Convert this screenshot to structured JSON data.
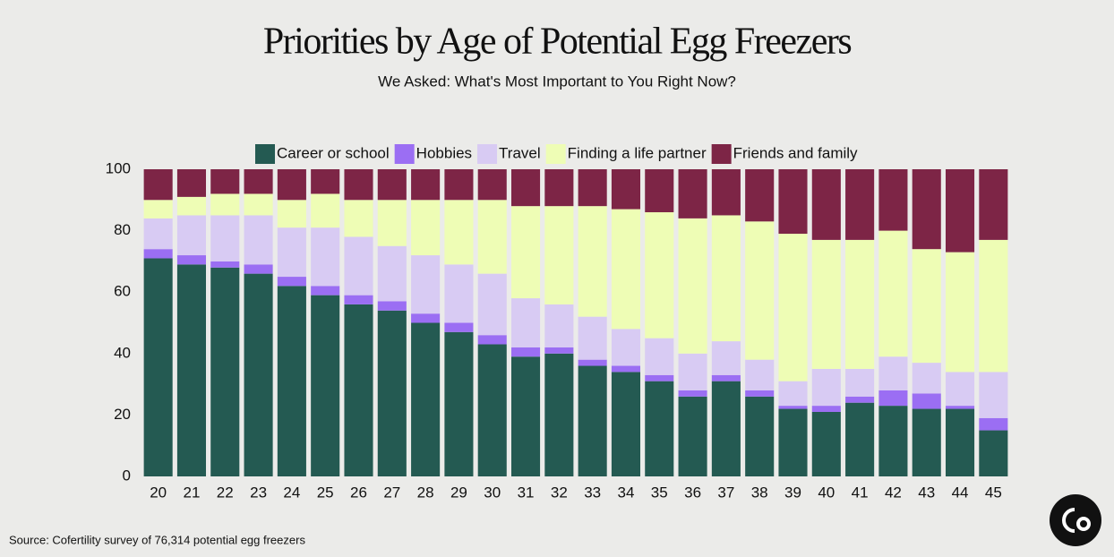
{
  "chart_data": {
    "type": "stacked_bar",
    "title": "Priorities by Age of Potential Egg Freezers",
    "subtitle": "We Asked: What's Most Important to You Right Now?",
    "source": "Source: Cofertility survey of 76,314 potential egg freezers",
    "categories": [
      "20",
      "21",
      "22",
      "23",
      "24",
      "25",
      "26",
      "27",
      "28",
      "29",
      "30",
      "31",
      "32",
      "33",
      "34",
      "35",
      "36",
      "37",
      "38",
      "39",
      "40",
      "41",
      "42",
      "43",
      "44",
      "45"
    ],
    "series": [
      {
        "name": "Career or school",
        "color": "#245a52",
        "values": [
          71,
          69,
          68,
          66,
          62,
          59,
          56,
          54,
          50,
          47,
          43,
          39,
          40,
          36,
          34,
          31,
          26,
          31,
          26,
          22,
          21,
          24,
          23,
          22,
          22,
          15
        ]
      },
      {
        "name": "Hobbies",
        "color": "#9b6ef3",
        "values": [
          3,
          3,
          2,
          3,
          3,
          3,
          3,
          3,
          3,
          3,
          3,
          3,
          2,
          2,
          2,
          2,
          2,
          2,
          2,
          1,
          2,
          2,
          5,
          5,
          1,
          4
        ]
      },
      {
        "name": "Travel",
        "color": "#d8cbf3",
        "values": [
          10,
          13,
          15,
          16,
          16,
          19,
          19,
          18,
          19,
          19,
          20,
          16,
          14,
          14,
          12,
          12,
          12,
          11,
          10,
          8,
          12,
          9,
          11,
          10,
          11,
          15
        ]
      },
      {
        "name": "Finding a life partner",
        "color": "#eefdb5",
        "values": [
          6,
          6,
          7,
          7,
          9,
          11,
          12,
          15,
          18,
          21,
          24,
          30,
          32,
          36,
          39,
          41,
          44,
          41,
          45,
          48,
          42,
          42,
          41,
          37,
          39,
          43
        ]
      },
      {
        "name": "Friends and family",
        "color": "#7d2546",
        "values": [
          10,
          9,
          8,
          8,
          10,
          8,
          10,
          10,
          10,
          10,
          10,
          12,
          12,
          12,
          13,
          14,
          16,
          15,
          17,
          21,
          23,
          23,
          20,
          26,
          27,
          23
        ]
      }
    ],
    "ylim": [
      0,
      100
    ],
    "yticks": [
      0,
      20,
      40,
      60,
      80,
      100
    ],
    "grid": false,
    "legend": "top"
  }
}
